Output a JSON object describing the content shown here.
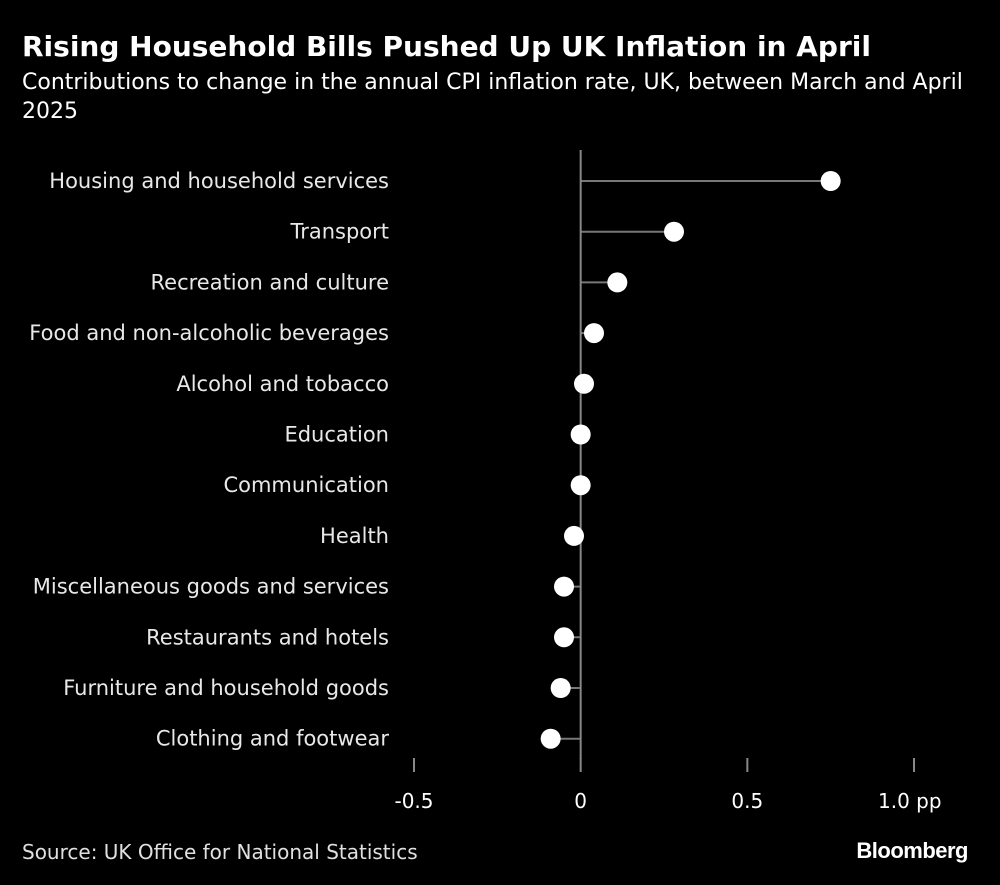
{
  "title": "Rising Household Bills Pushed Up UK Inflation in April",
  "subtitle": "Contributions to change in the annual CPI inflation rate, UK, between March and April 2025",
  "source": "Source: UK Office for National Statistics",
  "logo": "Bloomberg",
  "colors": {
    "background": "#000000",
    "dot": "#ffffff",
    "stem": "#777777",
    "axis": "#888888",
    "text": "#ffffff"
  },
  "chart_data": {
    "type": "scatter",
    "style": "lollipop",
    "orientation": "horizontal",
    "categories": [
      "Housing and household services",
      "Transport",
      "Recreation and culture",
      "Food and non-alcoholic beverages",
      "Alcohol and tobacco",
      "Education",
      "Communication",
      "Health",
      "Miscellaneous goods and services",
      "Restaurants and hotels",
      "Furniture and household goods",
      "Clothing and footwear"
    ],
    "values": [
      0.75,
      0.28,
      0.11,
      0.04,
      0.01,
      0.0,
      0.0,
      -0.02,
      -0.05,
      -0.05,
      -0.06,
      -0.09
    ],
    "xlim": [
      -0.5,
      1.0
    ],
    "xticks": [
      -0.5,
      0,
      0.5,
      1.0
    ],
    "xtick_labels": [
      "-0.5",
      "0",
      "0.5",
      "1.0 pp"
    ],
    "xlabel": "",
    "ylabel": "",
    "grid": false,
    "legend": "none"
  }
}
